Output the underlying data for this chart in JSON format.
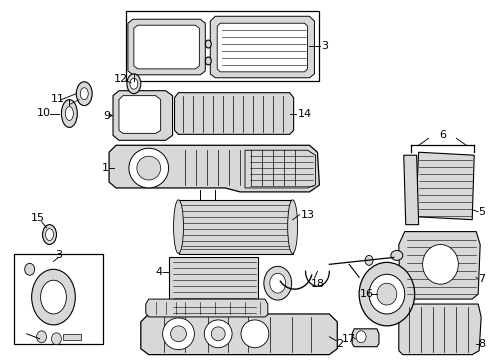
{
  "background_color": "#ffffff",
  "line_color": "#000000",
  "fill_light": "#d8d8d8",
  "fill_white": "#ffffff",
  "label_fontsize": 8,
  "figsize": [
    4.89,
    3.6
  ],
  "dpi": 100
}
